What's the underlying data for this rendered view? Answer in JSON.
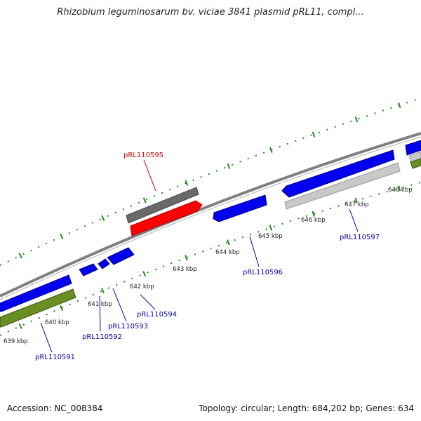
{
  "map": {
    "title": "Rhizobium leguminosarum bv. viciae 3841 plasmid pRL11, compl...",
    "accession": "Accession: NC_008384",
    "summary": "Topology: circular; Length: 684,202 bp; Genes: 634",
    "colors": {
      "backbone": "#808080",
      "forward_gene": "#0000ee",
      "highlight_gene": "#ff0000",
      "highlight_track": "#666666",
      "reverse_gene": "#0000ee",
      "feature_track_light": "#c8c8c8",
      "feature_track_green": "#6b8e23",
      "ticks": "#228b22",
      "highlight_label": "#cc0000",
      "gene_label": "#0000aa"
    },
    "kbp_labels": [
      "639 kbp",
      "640 kbp",
      "641 kbp",
      "642 kbp",
      "643 kbp",
      "644 kbp",
      "645 kbp",
      "646 kbp",
      "647 kbp",
      "648 kbp"
    ],
    "gene_labels": {
      "g95": "pRL110595",
      "g96": "pRL110596",
      "g97": "pRL110597",
      "g94": "pRL110594",
      "g93": "pRL110593",
      "g92": "pRL110592",
      "g91": "pRL110591"
    }
  }
}
